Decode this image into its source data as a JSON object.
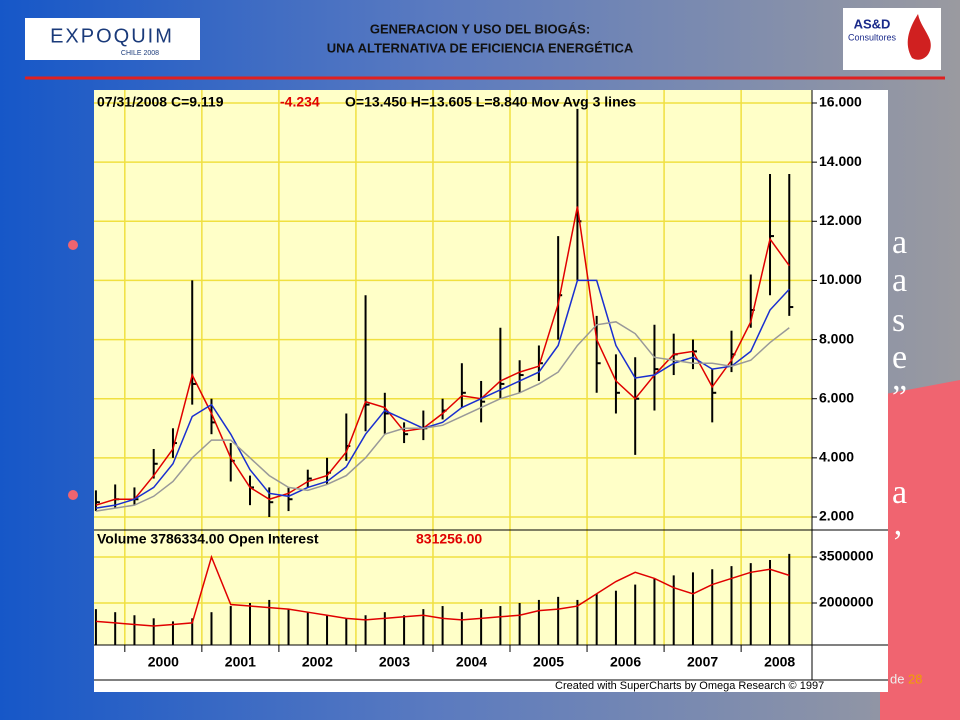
{
  "header": {
    "title_line1": "GENERACION Y USO DEL BIOGÁS:",
    "title_line2": "UNA ALTERNATIVA DE EFICIENCIA ENERGÉTICA",
    "logo_left": "EXPOQUIM",
    "logo_left_sub": "CHILE 2008",
    "logo_right": "AS&D",
    "logo_right_sub": "Consultores"
  },
  "slide_fragments": [
    "a",
    "a",
    "s",
    "e",
    "”",
    "a",
    "’"
  ],
  "page_number": {
    "prefix": "de",
    "total": "28"
  },
  "chart_data": {
    "type": "stock",
    "header": {
      "date_close": "07/31/2008 C=9.119",
      "change": "-4.234",
      "rest": "O=13.450 H=13.605 L=8.840 Mov Avg 3 lines"
    },
    "volume_header": {
      "label": "Volume 3786334.00 Open Interest",
      "open_interest": "831256.00"
    },
    "footer": "Created with SuperCharts by Omega Research © 1997",
    "xlim": [
      1999.6,
      2008.92
    ],
    "xticks": [
      {
        "value": 2000,
        "label": "2000"
      },
      {
        "value": 2001,
        "label": "2001"
      },
      {
        "value": 2002,
        "label": "2002"
      },
      {
        "value": 2003,
        "label": "2003"
      },
      {
        "value": 2004,
        "label": "2004"
      },
      {
        "value": 2005,
        "label": "2005"
      },
      {
        "value": 2006,
        "label": "2006"
      },
      {
        "value": 2007,
        "label": "2007"
      },
      {
        "value": 2008,
        "label": "2008"
      }
    ],
    "ylim": [
      1.56,
      16.44
    ],
    "yticks": [
      {
        "value": 2,
        "label": "2.000"
      },
      {
        "value": 4,
        "label": "4.000"
      },
      {
        "value": 6,
        "label": "6.000"
      },
      {
        "value": 8,
        "label": "8.000"
      },
      {
        "value": 10,
        "label": "10.000"
      },
      {
        "value": 12,
        "label": "12.000"
      },
      {
        "value": 14,
        "label": "14.000"
      },
      {
        "value": 16,
        "label": "16.000"
      }
    ],
    "y2lim": [
      630000,
      4380000
    ],
    "y2ticks": [
      2000000,
      3500000
    ],
    "grid": true,
    "x": [
      1999.625,
      1999.875,
      2000.125,
      2000.375,
      2000.625,
      2000.875,
      2001.125,
      2001.375,
      2001.625,
      2001.875,
      2002.125,
      2002.375,
      2002.625,
      2002.875,
      2003.125,
      2003.375,
      2003.625,
      2003.875,
      2004.125,
      2004.375,
      2004.625,
      2004.875,
      2005.125,
      2005.375,
      2005.625,
      2005.875,
      2006.125,
      2006.375,
      2006.625,
      2006.875,
      2007.125,
      2007.375,
      2007.625,
      2007.875,
      2008.125,
      2008.375,
      2008.625
    ],
    "high": [
      2.9,
      3.1,
      3.0,
      4.3,
      5.0,
      10.0,
      6.0,
      4.5,
      3.4,
      3.0,
      3.0,
      3.6,
      4.0,
      5.5,
      9.5,
      6.2,
      5.2,
      5.6,
      6.0,
      7.2,
      6.6,
      8.4,
      7.3,
      7.8,
      11.5,
      15.8,
      8.8,
      7.5,
      7.4,
      8.5,
      8.2,
      8.0,
      7.0,
      8.3,
      10.2,
      13.6,
      13.6
    ],
    "low": [
      2.2,
      2.3,
      2.4,
      3.3,
      4.0,
      5.8,
      4.8,
      3.2,
      2.4,
      2.0,
      2.2,
      3.0,
      3.1,
      3.9,
      4.9,
      4.8,
      4.5,
      4.6,
      5.3,
      5.7,
      5.2,
      6.0,
      6.2,
      6.6,
      8.0,
      10.0,
      6.2,
      5.5,
      4.1,
      5.6,
      6.8,
      7.0,
      5.2,
      6.9,
      8.4,
      9.5,
      8.8
    ],
    "close": [
      2.5,
      2.6,
      2.6,
      3.8,
      4.5,
      6.5,
      5.2,
      3.9,
      3.0,
      2.5,
      2.6,
      3.3,
      3.5,
      4.4,
      5.8,
      5.5,
      4.8,
      5.0,
      5.6,
      6.2,
      5.9,
      6.5,
      6.8,
      7.2,
      9.5,
      12.0,
      7.2,
      6.2,
      6.0,
      7.0,
      7.5,
      7.6,
      6.2,
      7.5,
      9.0,
      11.5,
      9.1
    ],
    "bar_color": "#000000",
    "series": [
      {
        "color": "#e00000",
        "values": [
          2.4,
          2.6,
          2.6,
          3.4,
          4.3,
          6.8,
          5.5,
          4.0,
          3.0,
          2.6,
          2.8,
          3.2,
          3.4,
          4.2,
          5.9,
          5.7,
          4.9,
          5.0,
          5.5,
          6.1,
          6.0,
          6.6,
          6.9,
          7.1,
          9.2,
          12.5,
          8.0,
          6.6,
          6.0,
          6.8,
          7.5,
          7.6,
          6.4,
          7.3,
          8.6,
          11.4,
          10.5
        ]
      },
      {
        "color": "#1a2fd0",
        "values": [
          2.3,
          2.4,
          2.6,
          3.0,
          3.8,
          5.4,
          5.8,
          4.8,
          3.6,
          2.8,
          2.7,
          3.0,
          3.2,
          3.7,
          4.8,
          5.6,
          5.3,
          5.0,
          5.2,
          5.7,
          6.0,
          6.3,
          6.6,
          6.9,
          7.8,
          10.0,
          10.0,
          7.8,
          6.7,
          6.8,
          7.2,
          7.4,
          7.0,
          7.1,
          7.6,
          9.0,
          9.7
        ]
      },
      {
        "color": "#999999",
        "values": [
          2.2,
          2.3,
          2.4,
          2.7,
          3.2,
          4.0,
          4.6,
          4.6,
          4.0,
          3.4,
          3.0,
          2.9,
          3.1,
          3.4,
          4.0,
          4.8,
          5.0,
          5.0,
          5.1,
          5.4,
          5.7,
          6.0,
          6.2,
          6.5,
          6.9,
          7.8,
          8.5,
          8.6,
          8.2,
          7.4,
          7.3,
          7.2,
          7.2,
          7.1,
          7.3,
          7.9,
          8.4
        ]
      },
      {
        "axis": "y2",
        "kind": "bar",
        "color": "#000000",
        "values": [
          1800000,
          1700000,
          1600000,
          1500000,
          1400000,
          1500000,
          1700000,
          1900000,
          2000000,
          2100000,
          1800000,
          1700000,
          1600000,
          1500000,
          1600000,
          1700000,
          1600000,
          1800000,
          1900000,
          1700000,
          1800000,
          1900000,
          2000000,
          2100000,
          2200000,
          2100000,
          2300000,
          2400000,
          2600000,
          2800000,
          2900000,
          3000000,
          3100000,
          3200000,
          3300000,
          3400000,
          3600000
        ]
      },
      {
        "axis": "y2",
        "kind": "line",
        "color": "#e00000",
        "values": [
          1400000,
          1350000,
          1300000,
          1250000,
          1300000,
          1350000,
          3500000,
          1950000,
          1900000,
          1850000,
          1800000,
          1700000,
          1600000,
          1500000,
          1450000,
          1500000,
          1550000,
          1600000,
          1500000,
          1450000,
          1500000,
          1550000,
          1600000,
          1750000,
          1800000,
          1900000,
          2300000,
          2700000,
          3000000,
          2800000,
          2500000,
          2300000,
          2600000,
          2800000,
          3000000,
          3100000,
          2900000
        ]
      }
    ]
  }
}
